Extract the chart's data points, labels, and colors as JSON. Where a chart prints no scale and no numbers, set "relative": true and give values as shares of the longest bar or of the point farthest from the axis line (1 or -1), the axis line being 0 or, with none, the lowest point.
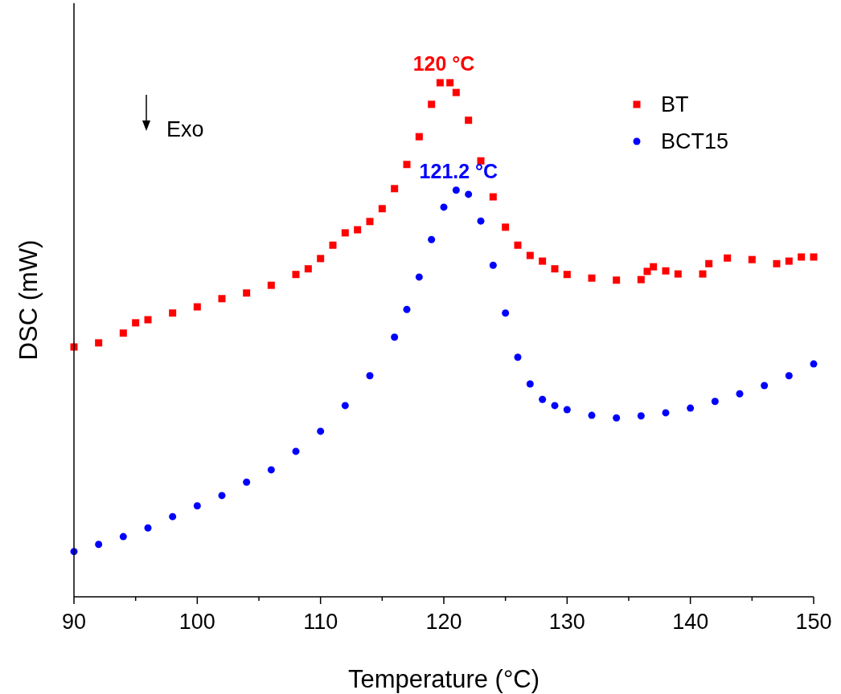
{
  "chart_data": {
    "type": "scatter",
    "relative": true,
    "xlabel": "Temperature (°C)",
    "ylabel": "DSC (mW)",
    "xlim": [
      90,
      150
    ],
    "xticks": [
      90,
      {
        "value": 95,
        "label": null
      },
      100,
      {
        "value": 105,
        "label": null
      },
      110,
      {
        "value": 115,
        "label": null
      },
      120,
      {
        "value": 125,
        "label": null
      },
      130,
      {
        "value": 135,
        "label": null
      },
      140,
      {
        "value": 145,
        "label": null
      },
      150
    ],
    "legend": "top right",
    "grid": false,
    "series": [
      {
        "name": "BT",
        "color": "#ff0000",
        "marker": "square",
        "x": [
          90,
          92,
          94,
          95,
          96,
          98,
          100,
          102,
          104,
          106,
          108,
          109,
          110,
          111,
          112,
          113,
          114,
          115,
          116,
          117,
          118,
          119,
          119.7,
          120.5,
          121,
          122,
          123,
          124,
          125,
          126,
          127,
          128,
          129,
          130,
          132,
          134,
          136,
          136.5,
          137,
          138,
          139,
          141,
          141.5,
          143,
          145,
          147,
          148,
          149,
          150
        ],
        "values": [
          0.486,
          0.494,
          0.513,
          0.533,
          0.539,
          0.552,
          0.564,
          0.58,
          0.591,
          0.606,
          0.627,
          0.638,
          0.658,
          0.684,
          0.708,
          0.714,
          0.73,
          0.755,
          0.794,
          0.841,
          0.895,
          0.958,
          1,
          1,
          0.981,
          0.927,
          0.848,
          0.778,
          0.719,
          0.684,
          0.664,
          0.653,
          0.638,
          0.627,
          0.62,
          0.616,
          0.617,
          0.633,
          0.642,
          0.634,
          0.628,
          0.628,
          0.648,
          0.659,
          0.656,
          0.648,
          0.653,
          0.661,
          0.661
        ]
      },
      {
        "name": "BCT15",
        "color": "#0000ff",
        "marker": "circle",
        "x": [
          90,
          92,
          94,
          96,
          98,
          100,
          102,
          104,
          106,
          108,
          110,
          112,
          114,
          116,
          117,
          118,
          119,
          120,
          121,
          122,
          123,
          124,
          125,
          126,
          127,
          128,
          129,
          130,
          132,
          134,
          136,
          138,
          140,
          142,
          144,
          146,
          148,
          150
        ],
        "values": [
          0.088,
          0.102,
          0.117,
          0.134,
          0.156,
          0.177,
          0.197,
          0.223,
          0.247,
          0.283,
          0.322,
          0.372,
          0.43,
          0.505,
          0.559,
          0.622,
          0.695,
          0.758,
          0.791,
          0.783,
          0.731,
          0.645,
          0.552,
          0.466,
          0.414,
          0.384,
          0.372,
          0.364,
          0.353,
          0.348,
          0.352,
          0.358,
          0.367,
          0.38,
          0.395,
          0.411,
          0.43,
          0.453
        ]
      }
    ],
    "annotations": [
      {
        "text": "120 °C",
        "x": 120,
        "y": 1
      },
      {
        "text": "121.2 °C",
        "x": 121.2,
        "y": 0.791
      },
      "Exo"
    ]
  }
}
